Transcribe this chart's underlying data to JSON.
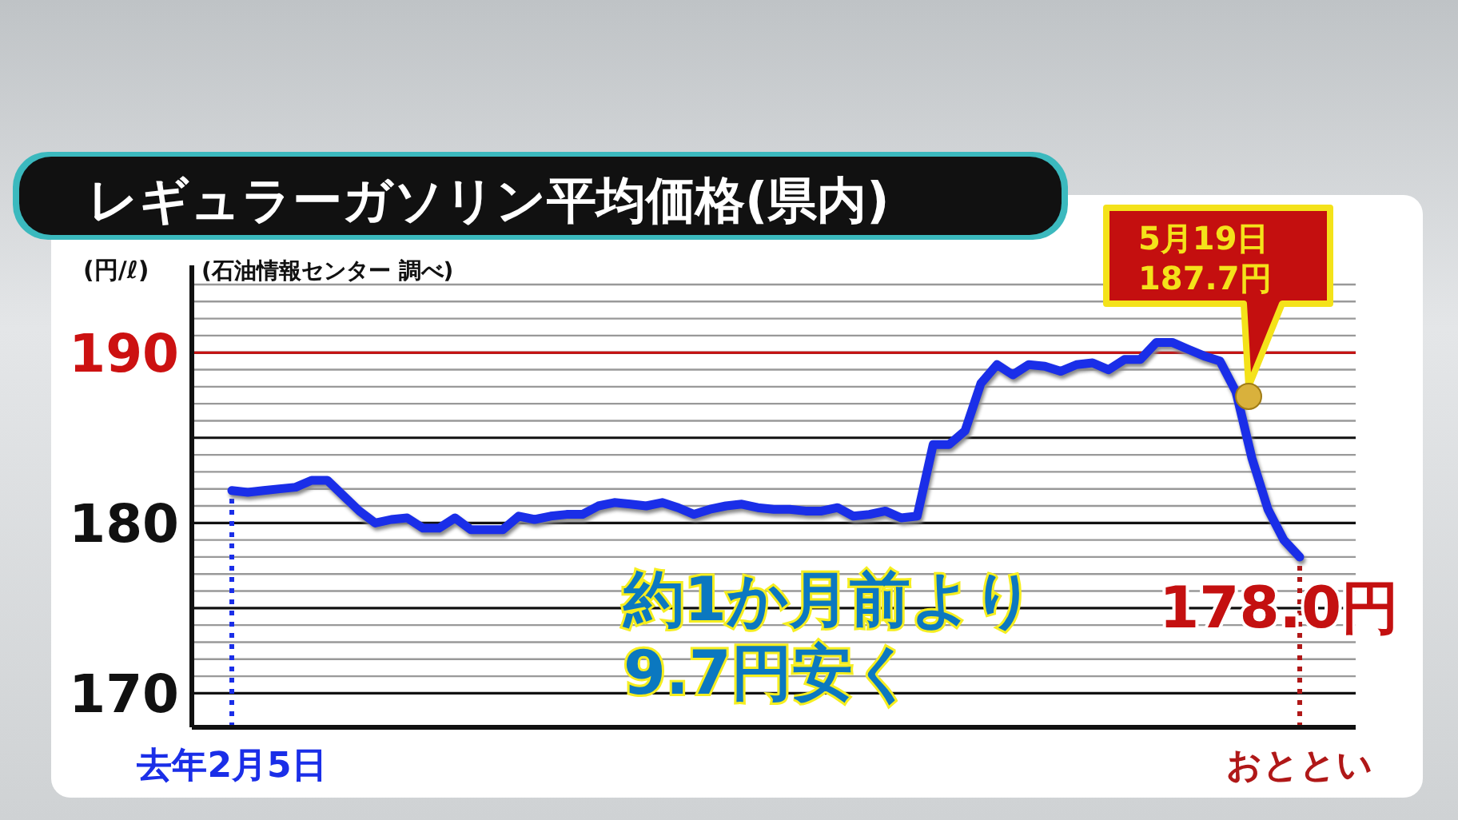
{
  "chart_data": {
    "type": "line",
    "title": "レギュラーガソリン平均価格(県内)",
    "ylabel": "(円/ℓ)",
    "annotations": [
      "(石油情報センター 調べ)",
      "5月19日\n187.7円",
      {
        "text": "178.0円",
        "x": "おととい",
        "y": 178.0
      },
      "約1か月前より\n9.7円安く"
    ],
    "categories": [
      "去年2月5日",
      null,
      null,
      null,
      null,
      null,
      null,
      null,
      null,
      null,
      null,
      null,
      null,
      null,
      null,
      null,
      null,
      null,
      null,
      null,
      null,
      null,
      null,
      null,
      null,
      null,
      null,
      null,
      null,
      null,
      null,
      null,
      null,
      null,
      null,
      null,
      null,
      null,
      null,
      null,
      null,
      null,
      null,
      null,
      null,
      null,
      null,
      null,
      null,
      null,
      null,
      null,
      null,
      null,
      null,
      null,
      null,
      null,
      null,
      null,
      null,
      null,
      null,
      null,
      null,
      null,
      null,
      "おととい"
    ],
    "series": [
      {
        "color": "#1a2ee8",
        "values": [
          181.9,
          181.8,
          181.9,
          182.0,
          182.1,
          182.5,
          182.5,
          181.6,
          180.7,
          180.0,
          180.2,
          180.3,
          179.7,
          179.7,
          180.3,
          179.6,
          179.6,
          179.6,
          180.4,
          180.2,
          180.4,
          180.5,
          180.5,
          181.0,
          181.2,
          181.1,
          181.0,
          181.2,
          180.9,
          180.5,
          180.8,
          181.0,
          181.1,
          180.9,
          180.8,
          180.8,
          180.7,
          180.7,
          180.9,
          180.4,
          180.5,
          180.7,
          180.3,
          180.4,
          184.6,
          184.6,
          185.4,
          188.2,
          189.3,
          188.7,
          189.3,
          189.2,
          188.9,
          189.3,
          189.4,
          189.0,
          189.6,
          189.6,
          190.6,
          190.6,
          190.2,
          189.8,
          189.5,
          187.7,
          183.8,
          180.8,
          179.0,
          178.0
        ]
      }
    ],
    "ylim": [
      168,
      194
    ],
    "yticks": [
      170,
      {
        "value": 171,
        "label": null
      },
      {
        "value": 172,
        "label": null
      },
      {
        "value": 173,
        "label": null
      },
      {
        "value": 174,
        "label": null
      },
      {
        "value": 175,
        "label": null
      },
      {
        "value": 176,
        "label": null
      },
      {
        "value": 177,
        "label": null
      },
      {
        "value": 178,
        "label": null
      },
      {
        "value": 179,
        "label": null
      },
      180,
      {
        "value": 181,
        "label": null
      },
      {
        "value": 182,
        "label": null
      },
      {
        "value": 183,
        "label": null
      },
      {
        "value": 184,
        "label": null
      },
      {
        "value": 185,
        "label": null
      },
      {
        "value": 186,
        "label": null
      },
      {
        "value": 187,
        "label": null
      },
      {
        "value": 188,
        "label": null
      },
      {
        "value": 189,
        "label": null
      },
      190,
      {
        "value": 191,
        "label": null
      },
      {
        "value": 192,
        "label": null
      },
      {
        "value": 193,
        "label": null
      },
      {
        "value": 194,
        "label": null
      }
    ],
    "grid": "y",
    "ref_lines": [
      {
        "axis": "y",
        "value": 190,
        "color": "#cc1111"
      },
      {
        "axis": "x",
        "value": "去年2月5日",
        "color": "#1a2ee8",
        "line_style": "dotted"
      },
      {
        "axis": "x",
        "value": "おととい",
        "color": "#b01818",
        "line_style": "dotted"
      }
    ]
  }
}
